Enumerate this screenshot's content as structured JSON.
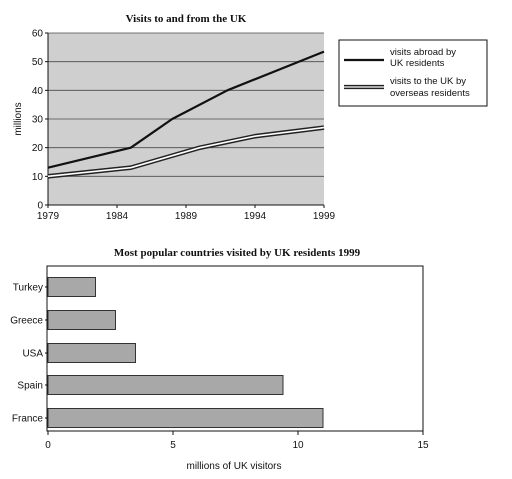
{
  "chart_data": [
    {
      "type": "line",
      "title": "Visits to and from the UK",
      "xlabel": "",
      "ylabel": "millions",
      "xlim": [
        1979,
        1999
      ],
      "ylim": [
        0,
        60
      ],
      "x_ticks": [
        "1979",
        "1984",
        "1989",
        "1994",
        "1999"
      ],
      "y_ticks": [
        "0",
        "10",
        "20",
        "30",
        "40",
        "50",
        "60"
      ],
      "grid": true,
      "legend_position": "right",
      "colors": {
        "plot_background": "#cfcfcf",
        "abroad_line": "#111111",
        "uk_line": "#222222",
        "axis": "#111111"
      },
      "series": [
        {
          "name": "visits abroad by UK residents",
          "x": [
            1979,
            1985,
            1988,
            1992,
            1999
          ],
          "y": [
            13,
            20,
            30,
            40,
            53.5
          ]
        },
        {
          "name": "visits to the UK by overseas residents",
          "x": [
            1979,
            1985,
            1990,
            1994,
            1999
          ],
          "y": [
            10,
            13,
            20,
            24,
            27
          ]
        }
      ]
    },
    {
      "type": "bar",
      "orientation": "horizontal",
      "title": "Most popular countries visited by UK residents 1999",
      "xlabel": "millions of UK visitors",
      "ylabel": "",
      "xlim": [
        0,
        15
      ],
      "x_ticks": [
        "0",
        "5",
        "10",
        "15"
      ],
      "grid": false,
      "colors": {
        "bar_fill": "#a8a8a8",
        "bar_stroke": "#333333",
        "frame": "#111111"
      },
      "categories": [
        "Turkey",
        "Greece",
        "USA",
        "Spain",
        "France"
      ],
      "values": [
        1.9,
        2.7,
        3.5,
        9.4,
        11.0
      ]
    }
  ]
}
